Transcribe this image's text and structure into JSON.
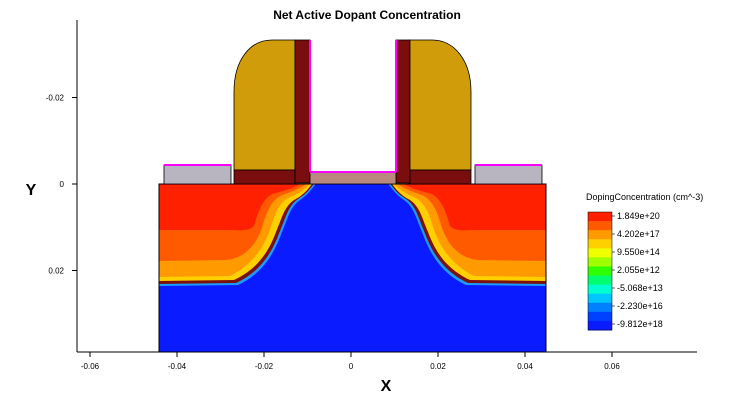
{
  "chart_data": {
    "type": "heatmap",
    "title": "Net Active Dopant Concentration",
    "xlabel": "X",
    "ylabel": "Y",
    "xlim": [
      -0.063,
      0.079
    ],
    "ylim": [
      -0.037,
      0.039
    ],
    "y_axis_inverted": true,
    "grid": false,
    "x_ticks": [
      "-0.06",
      "-0.04",
      "-0.02",
      "0",
      "0.02",
      "0.04",
      "0.06"
    ],
    "x_tick_values": [
      -0.06,
      -0.04,
      -0.02,
      0,
      0.02,
      0.04,
      0.06
    ],
    "y_ticks": [
      "-0.02",
      "0",
      "0.02"
    ],
    "y_tick_values": [
      -0.02,
      0,
      0.02
    ],
    "colorbar": {
      "title": "DopingConcentration (cm^-3)",
      "placement": "right",
      "labels": [
        "1.849e+20",
        "4.202e+17",
        "9.550e+14",
        "2.055e+12",
        "-5.068e+13",
        "-2.230e+16",
        "-9.812e+18"
      ],
      "colors": [
        "#ff2000",
        "#ff5a00",
        "#ff9a00",
        "#ffd000",
        "#f0ff00",
        "#a0ff00",
        "#30ff00",
        "#00ff70",
        "#00ffd0",
        "#00c8ff",
        "#0080ff",
        "#0040ff",
        "#0a1cff"
      ]
    },
    "regions": [
      {
        "name": "substrate",
        "material": "silicon",
        "x": [
          -0.044,
          0.044
        ],
        "y": [
          0,
          0.039
        ],
        "value": "-9.812e+18"
      },
      {
        "name": "source",
        "x": [
          -0.044,
          -0.008
        ],
        "y": [
          0,
          0.022
        ],
        "value": "1.849e+20"
      },
      {
        "name": "drain",
        "x": [
          0.008,
          0.044
        ],
        "y": [
          0,
          0.022
        ],
        "value": "1.849e+20"
      },
      {
        "name": "gate-oxide",
        "x": [
          -0.0095,
          0.0095
        ],
        "y": [
          -0.0028,
          0
        ]
      },
      {
        "name": "left-spacer",
        "x": [
          -0.027,
          -0.0095
        ],
        "y": [
          -0.033,
          -0.0028
        ]
      },
      {
        "name": "right-spacer",
        "x": [
          0.0095,
          0.027
        ],
        "y": [
          -0.033,
          -0.0028
        ]
      },
      {
        "name": "left-liner",
        "x": [
          -0.013,
          -0.0095
        ],
        "y": [
          -0.033,
          -0.0005
        ]
      },
      {
        "name": "right-liner",
        "x": [
          0.0095,
          0.013
        ],
        "y": [
          -0.033,
          -0.0005
        ]
      },
      {
        "name": "left-contact",
        "x": [
          -0.043,
          -0.028
        ],
        "y": [
          -0.004,
          0
        ]
      },
      {
        "name": "right-contact",
        "x": [
          0.028,
          0.044
        ],
        "y": [
          -0.004,
          0
        ]
      }
    ],
    "colors": {
      "n_plus": "#ff2000",
      "p_substrate": "#0a1cff",
      "spacer": "#d09c0a",
      "liner": "#7a0e0e",
      "oxide": "#b98980",
      "contact": "#b8b4c0",
      "boundary": "#ff00ff"
    }
  }
}
